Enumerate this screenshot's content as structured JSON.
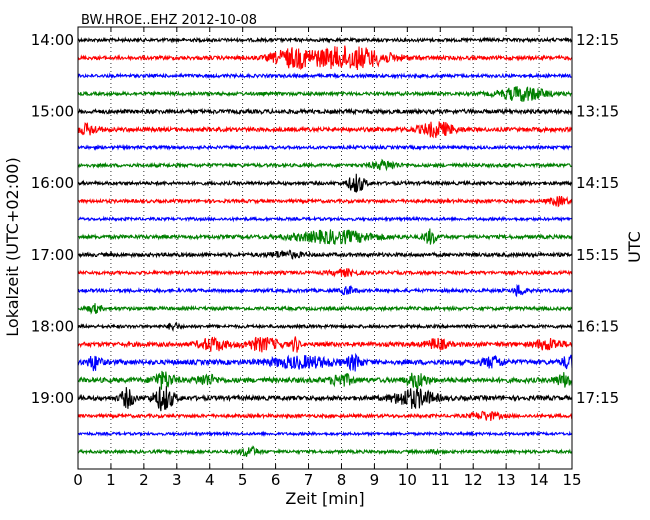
{
  "chart_data": {
    "type": "line",
    "title": "BW.HROE..EHZ 2012-10-08",
    "xlabel": "Zeit  [min]",
    "ylabel_left": "Lokalzeit (UTC+02:00)",
    "ylabel_right": "UTC",
    "xlim": [
      0,
      15
    ],
    "x_ticks": [
      0,
      1,
      2,
      3,
      4,
      5,
      6,
      7,
      8,
      9,
      10,
      11,
      12,
      13,
      14,
      15
    ],
    "grid": "vertical dotted",
    "trace_colors": [
      "#000000",
      "#ff0000",
      "#0000ff",
      "#008000"
    ],
    "traces_per_hour": 4,
    "row_count": 24,
    "left_ticks": [
      {
        "label": "14:00",
        "row": 0
      },
      {
        "label": "15:00",
        "row": 4
      },
      {
        "label": "16:00",
        "row": 8
      },
      {
        "label": "17:00",
        "row": 12
      },
      {
        "label": "18:00",
        "row": 16
      },
      {
        "label": "19:00",
        "row": 20
      }
    ],
    "right_ticks": [
      {
        "label": "12:15",
        "row": 0
      },
      {
        "label": "13:15",
        "row": 4
      },
      {
        "label": "14:15",
        "row": 8
      },
      {
        "label": "15:15",
        "row": 12
      },
      {
        "label": "16:15",
        "row": 16
      },
      {
        "label": "17:15",
        "row": 20
      }
    ],
    "rows": [
      {
        "noise": 1.6,
        "events": []
      },
      {
        "noise": 1.8,
        "events": [
          {
            "t": 6.5,
            "w": 0.6,
            "a": 8
          },
          {
            "t": 8.2,
            "w": 1.2,
            "a": 11
          }
        ]
      },
      {
        "noise": 1.6,
        "events": []
      },
      {
        "noise": 1.6,
        "events": [
          {
            "t": 13.5,
            "w": 0.7,
            "a": 7
          }
        ]
      },
      {
        "noise": 2.0,
        "events": []
      },
      {
        "noise": 2.0,
        "events": [
          {
            "t": 0.3,
            "w": 0.3,
            "a": 5
          },
          {
            "t": 10.9,
            "w": 0.5,
            "a": 7
          }
        ]
      },
      {
        "noise": 1.5,
        "events": []
      },
      {
        "noise": 1.6,
        "events": [
          {
            "t": 9.3,
            "w": 0.4,
            "a": 4
          }
        ]
      },
      {
        "noise": 1.6,
        "events": [
          {
            "t": 8.45,
            "w": 0.25,
            "a": 9
          }
        ]
      },
      {
        "noise": 1.6,
        "events": [
          {
            "t": 14.6,
            "w": 0.3,
            "a": 4
          }
        ]
      },
      {
        "noise": 1.4,
        "events": []
      },
      {
        "noise": 1.8,
        "events": [
          {
            "t": 7.8,
            "w": 1.2,
            "a": 6
          },
          {
            "t": 10.7,
            "w": 0.2,
            "a": 7
          }
        ]
      },
      {
        "noise": 1.8,
        "events": [
          {
            "t": 6.3,
            "w": 0.5,
            "a": 3
          }
        ]
      },
      {
        "noise": 1.6,
        "events": [
          {
            "t": 8.1,
            "w": 0.4,
            "a": 3
          }
        ]
      },
      {
        "noise": 1.6,
        "events": [
          {
            "t": 8.2,
            "w": 0.2,
            "a": 4
          },
          {
            "t": 13.4,
            "w": 0.15,
            "a": 6
          }
        ]
      },
      {
        "noise": 1.6,
        "events": [
          {
            "t": 0.5,
            "w": 0.2,
            "a": 4
          }
        ]
      },
      {
        "noise": 1.5,
        "events": [
          {
            "t": 2.9,
            "w": 0.15,
            "a": 4
          }
        ]
      },
      {
        "noise": 2.2,
        "events": [
          {
            "t": 4.1,
            "w": 0.4,
            "a": 6
          },
          {
            "t": 5.6,
            "w": 0.5,
            "a": 6
          },
          {
            "t": 6.6,
            "w": 0.1,
            "a": 8
          },
          {
            "t": 10.9,
            "w": 0.3,
            "a": 5
          },
          {
            "t": 14.3,
            "w": 0.4,
            "a": 5
          }
        ]
      },
      {
        "noise": 2.4,
        "events": [
          {
            "t": 0.5,
            "w": 0.2,
            "a": 7
          },
          {
            "t": 6.8,
            "w": 1.0,
            "a": 5
          },
          {
            "t": 8.4,
            "w": 0.2,
            "a": 7
          },
          {
            "t": 12.6,
            "w": 0.3,
            "a": 5
          },
          {
            "t": 14.9,
            "w": 0.2,
            "a": 6
          }
        ]
      },
      {
        "noise": 2.4,
        "events": [
          {
            "t": 2.6,
            "w": 0.3,
            "a": 8
          },
          {
            "t": 3.9,
            "w": 0.3,
            "a": 5
          },
          {
            "t": 8.0,
            "w": 0.3,
            "a": 6
          },
          {
            "t": 10.3,
            "w": 0.3,
            "a": 7
          },
          {
            "t": 14.8,
            "w": 0.3,
            "a": 6
          }
        ]
      },
      {
        "noise": 2.2,
        "events": [
          {
            "t": 1.5,
            "w": 0.2,
            "a": 9
          },
          {
            "t": 2.6,
            "w": 0.3,
            "a": 12
          },
          {
            "t": 10.2,
            "w": 0.6,
            "a": 9
          }
        ]
      },
      {
        "noise": 1.6,
        "events": [
          {
            "t": 12.4,
            "w": 0.4,
            "a": 4
          }
        ]
      },
      {
        "noise": 1.3,
        "events": []
      },
      {
        "noise": 1.5,
        "events": [
          {
            "t": 5.2,
            "w": 0.25,
            "a": 5
          },
          {
            "t": 10.8,
            "w": 0.1,
            "a": 3
          }
        ]
      }
    ]
  }
}
